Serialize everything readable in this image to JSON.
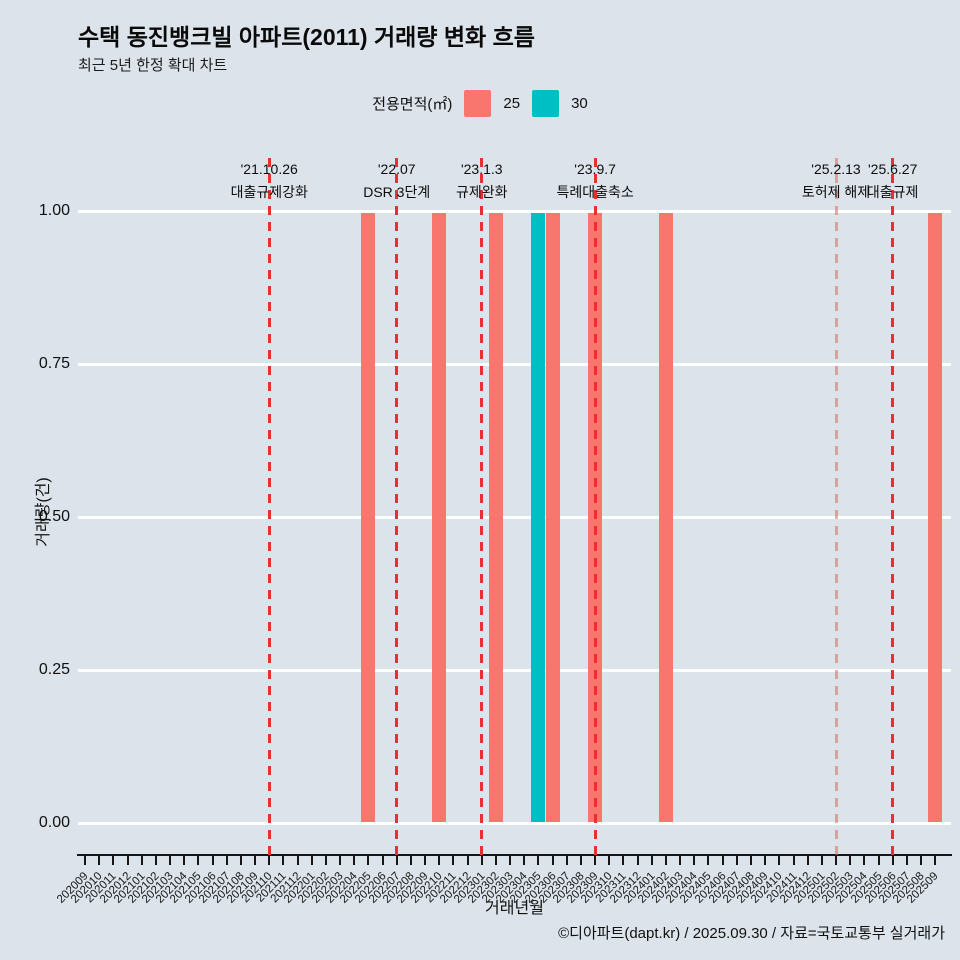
{
  "title": "수택 동진뱅크빌 아파트(2011) 거래량 변화 흐름",
  "subtitle": "최근 5년 한정 확대 차트",
  "legend": {
    "label": "전용면적(㎡)",
    "items": [
      {
        "name": "25",
        "color": "#F8766D"
      },
      {
        "name": "30",
        "color": "#00BFC4"
      }
    ]
  },
  "chart_data": {
    "type": "bar",
    "title": "수택 동진뱅크빌 아파트(2011) 거래량 변화 흐름",
    "xlabel": "거래년월",
    "ylabel": "거래량(건)",
    "ylim": [
      0,
      1
    ],
    "yticks": [
      "1.00",
      "0.75",
      "0.50",
      "0.25",
      "0.00"
    ],
    "grid": "white horizontal major gridlines",
    "legend_position": "top-center",
    "categories": [
      "202009",
      "202010",
      "202011",
      "202012",
      "202101",
      "202102",
      "202103",
      "202104",
      "202105",
      "202106",
      "202107",
      "202108",
      "202109",
      "202110",
      "202111",
      "202112",
      "202201",
      "202202",
      "202203",
      "202204",
      "202205",
      "202206",
      "202207",
      "202208",
      "202209",
      "202210",
      "202211",
      "202212",
      "202301",
      "202302",
      "202303",
      "202304",
      "202305",
      "202306",
      "202307",
      "202308",
      "202309",
      "202310",
      "202311",
      "202312",
      "202401",
      "202402",
      "202403",
      "202404",
      "202405",
      "202406",
      "202407",
      "202408",
      "202409",
      "202410",
      "202411",
      "202412",
      "202501",
      "202502",
      "202503",
      "202504",
      "202505",
      "202506",
      "202507",
      "202508",
      "202509"
    ],
    "series": [
      {
        "name": "25",
        "color": "#F8766D",
        "points": [
          {
            "month": "202205",
            "value": 1
          },
          {
            "month": "202210",
            "value": 1
          },
          {
            "month": "202302",
            "value": 1
          },
          {
            "month": "202306",
            "value": 1
          },
          {
            "month": "202309",
            "value": 1
          },
          {
            "month": "202402",
            "value": 1
          },
          {
            "month": "202509",
            "value": 1
          }
        ]
      },
      {
        "name": "30",
        "color": "#00BFC4",
        "points": [
          {
            "month": "202305",
            "value": 1
          }
        ]
      }
    ],
    "annotations": [
      {
        "date": "'21.10.26",
        "label": "대출규제강화",
        "month": "202110",
        "faded": false
      },
      {
        "date": "'22.07",
        "label": "DSR 3단계",
        "month": "202207",
        "faded": false
      },
      {
        "date": "'23.1.3",
        "label": "규제완화",
        "month": "202301",
        "faded": false
      },
      {
        "date": "'23.9.7",
        "label": "특례대출축소",
        "month": "202309",
        "faded": false
      },
      {
        "date": "'25.2.13",
        "label": "토허제 해제",
        "month": "202502",
        "faded": true
      },
      {
        "date": "'25.6.27",
        "label": "대출규제",
        "month": "202506",
        "faded": false
      }
    ]
  },
  "footer": "©디아파트(dapt.kr) / 2025.09.30 / 자료=국토교통부 실거래가"
}
